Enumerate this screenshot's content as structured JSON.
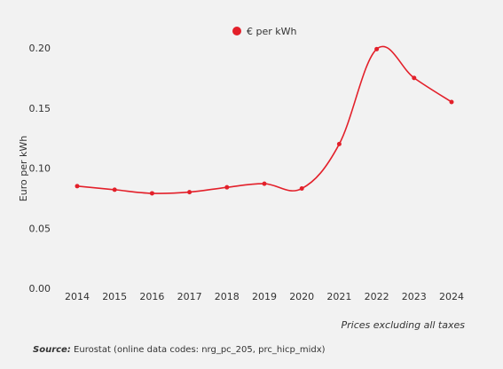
{
  "chart_data": {
    "type": "line",
    "categories": [
      "2014",
      "2015",
      "2016",
      "2017",
      "2018",
      "2019",
      "2020",
      "2021",
      "2022",
      "2023",
      "2024"
    ],
    "series": [
      {
        "name": "€ per kWh",
        "values": [
          0.085,
          0.082,
          0.079,
          0.08,
          0.084,
          0.087,
          0.083,
          0.12,
          0.199,
          0.175,
          0.155
        ]
      }
    ],
    "ylabel": "Euro per kWh",
    "ylim": [
      0,
      0.2
    ],
    "yticks": [
      "0.00",
      "0.05",
      "0.10",
      "0.15",
      "0.20"
    ],
    "grid": false,
    "legend_position": "top-center",
    "series_color": "#e3202a"
  },
  "note": "Prices excluding all taxes",
  "source": {
    "label": "Source:",
    "text": "Eurostat (online data codes: nrg_pc_205, prc_hicp_midx)"
  }
}
